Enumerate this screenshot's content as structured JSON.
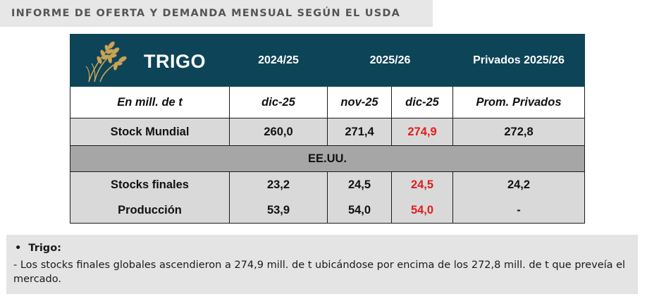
{
  "header": {
    "title": "INFORME DE OFERTA Y DEMANDA MENSUAL SEGÚN EL USDA"
  },
  "table": {
    "title": "TRIGO",
    "col_headers": [
      "2024/25",
      "2025/26",
      "Privados 2025/26"
    ],
    "sub_headers": [
      "En mill. de t",
      "dic-25",
      "nov-25",
      "dic-25",
      "Prom. Privados"
    ],
    "world_row": {
      "label": "Stock Mundial",
      "values": [
        "260,0",
        "271,4",
        "274,9",
        "272,8"
      ]
    },
    "section_label": "EE.UU.",
    "usa_rows": [
      {
        "label": "Stocks finales",
        "values": [
          "23,2",
          "24,5",
          "24,5",
          "24,2"
        ]
      },
      {
        "label": "Producción",
        "values": [
          "53,9",
          "54,0",
          "54,0",
          "-"
        ]
      }
    ],
    "highlight_color": "#e21d1d",
    "header_color": "#0d4457",
    "wheat_icon": "wheat-icon"
  },
  "note": {
    "bullet": "•",
    "heading": "Trigo:",
    "text": "- Los stocks finales globales ascendieron a 274,9 mill. de t ubicándose por encima de los 272,8 mill. de t que preveía el mercado."
  }
}
